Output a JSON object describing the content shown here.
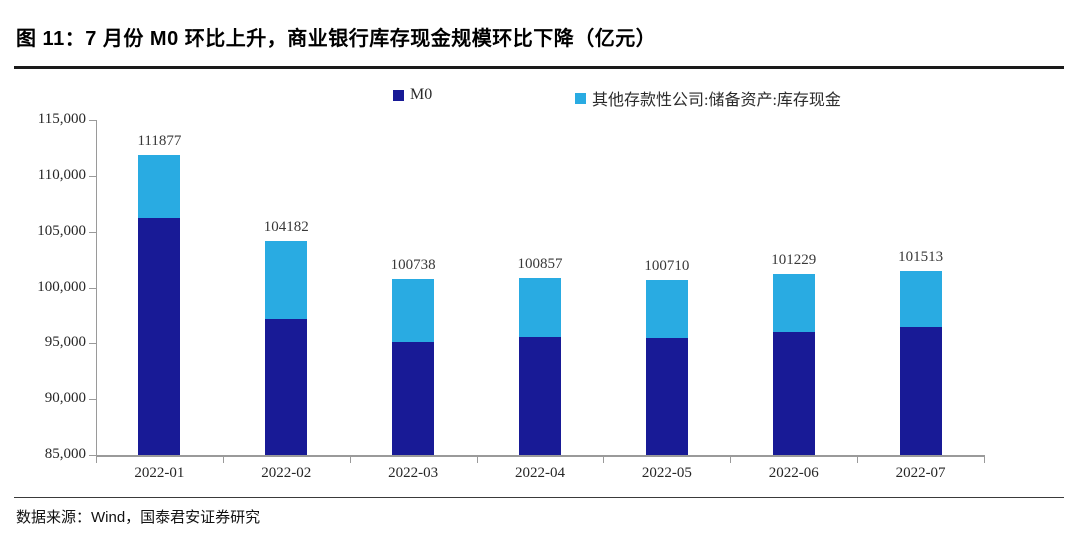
{
  "figure": {
    "title": "图 11：7 月份 M0 环比上升，商业银行库存现金规模环比下降（亿元）",
    "source": "数据来源：Wind，国泰君安证券研究"
  },
  "colors": {
    "m0": "#181A96",
    "cash": "#29ABE2",
    "axis": "#9a9a9a",
    "text": "#262626"
  },
  "chart_data": {
    "type": "bar",
    "stacked": true,
    "title": "图 11：7 月份 M0 环比上升，商业银行库存现金规模环比下降（亿元）",
    "categories": [
      "2022-01",
      "2022-02",
      "2022-03",
      "2022-04",
      "2022-05",
      "2022-06",
      "2022-07"
    ],
    "series": [
      {
        "name": "M0",
        "color_key": "m0",
        "values": [
          106200,
          97200,
          95100,
          95600,
          95500,
          96000,
          96500
        ]
      },
      {
        "name": "其他存款性公司:储备资产:库存现金",
        "color_key": "cash",
        "values": [
          5677,
          6982,
          5638,
          5257,
          5210,
          5229,
          5013
        ]
      }
    ],
    "totals": [
      111877,
      104182,
      100738,
      100857,
      100710,
      101229,
      101513
    ],
    "total_labels": [
      "111877",
      "104182",
      "100738",
      "100857",
      "100710",
      "101229",
      "101513"
    ],
    "ylim": [
      85000,
      115000
    ],
    "ytick_step": 5000,
    "ytick_labels": [
      "85,000",
      "90,000",
      "95,000",
      "100,000",
      "105,000",
      "110,000",
      "115,000"
    ],
    "grid": false,
    "legend_position": "top"
  }
}
